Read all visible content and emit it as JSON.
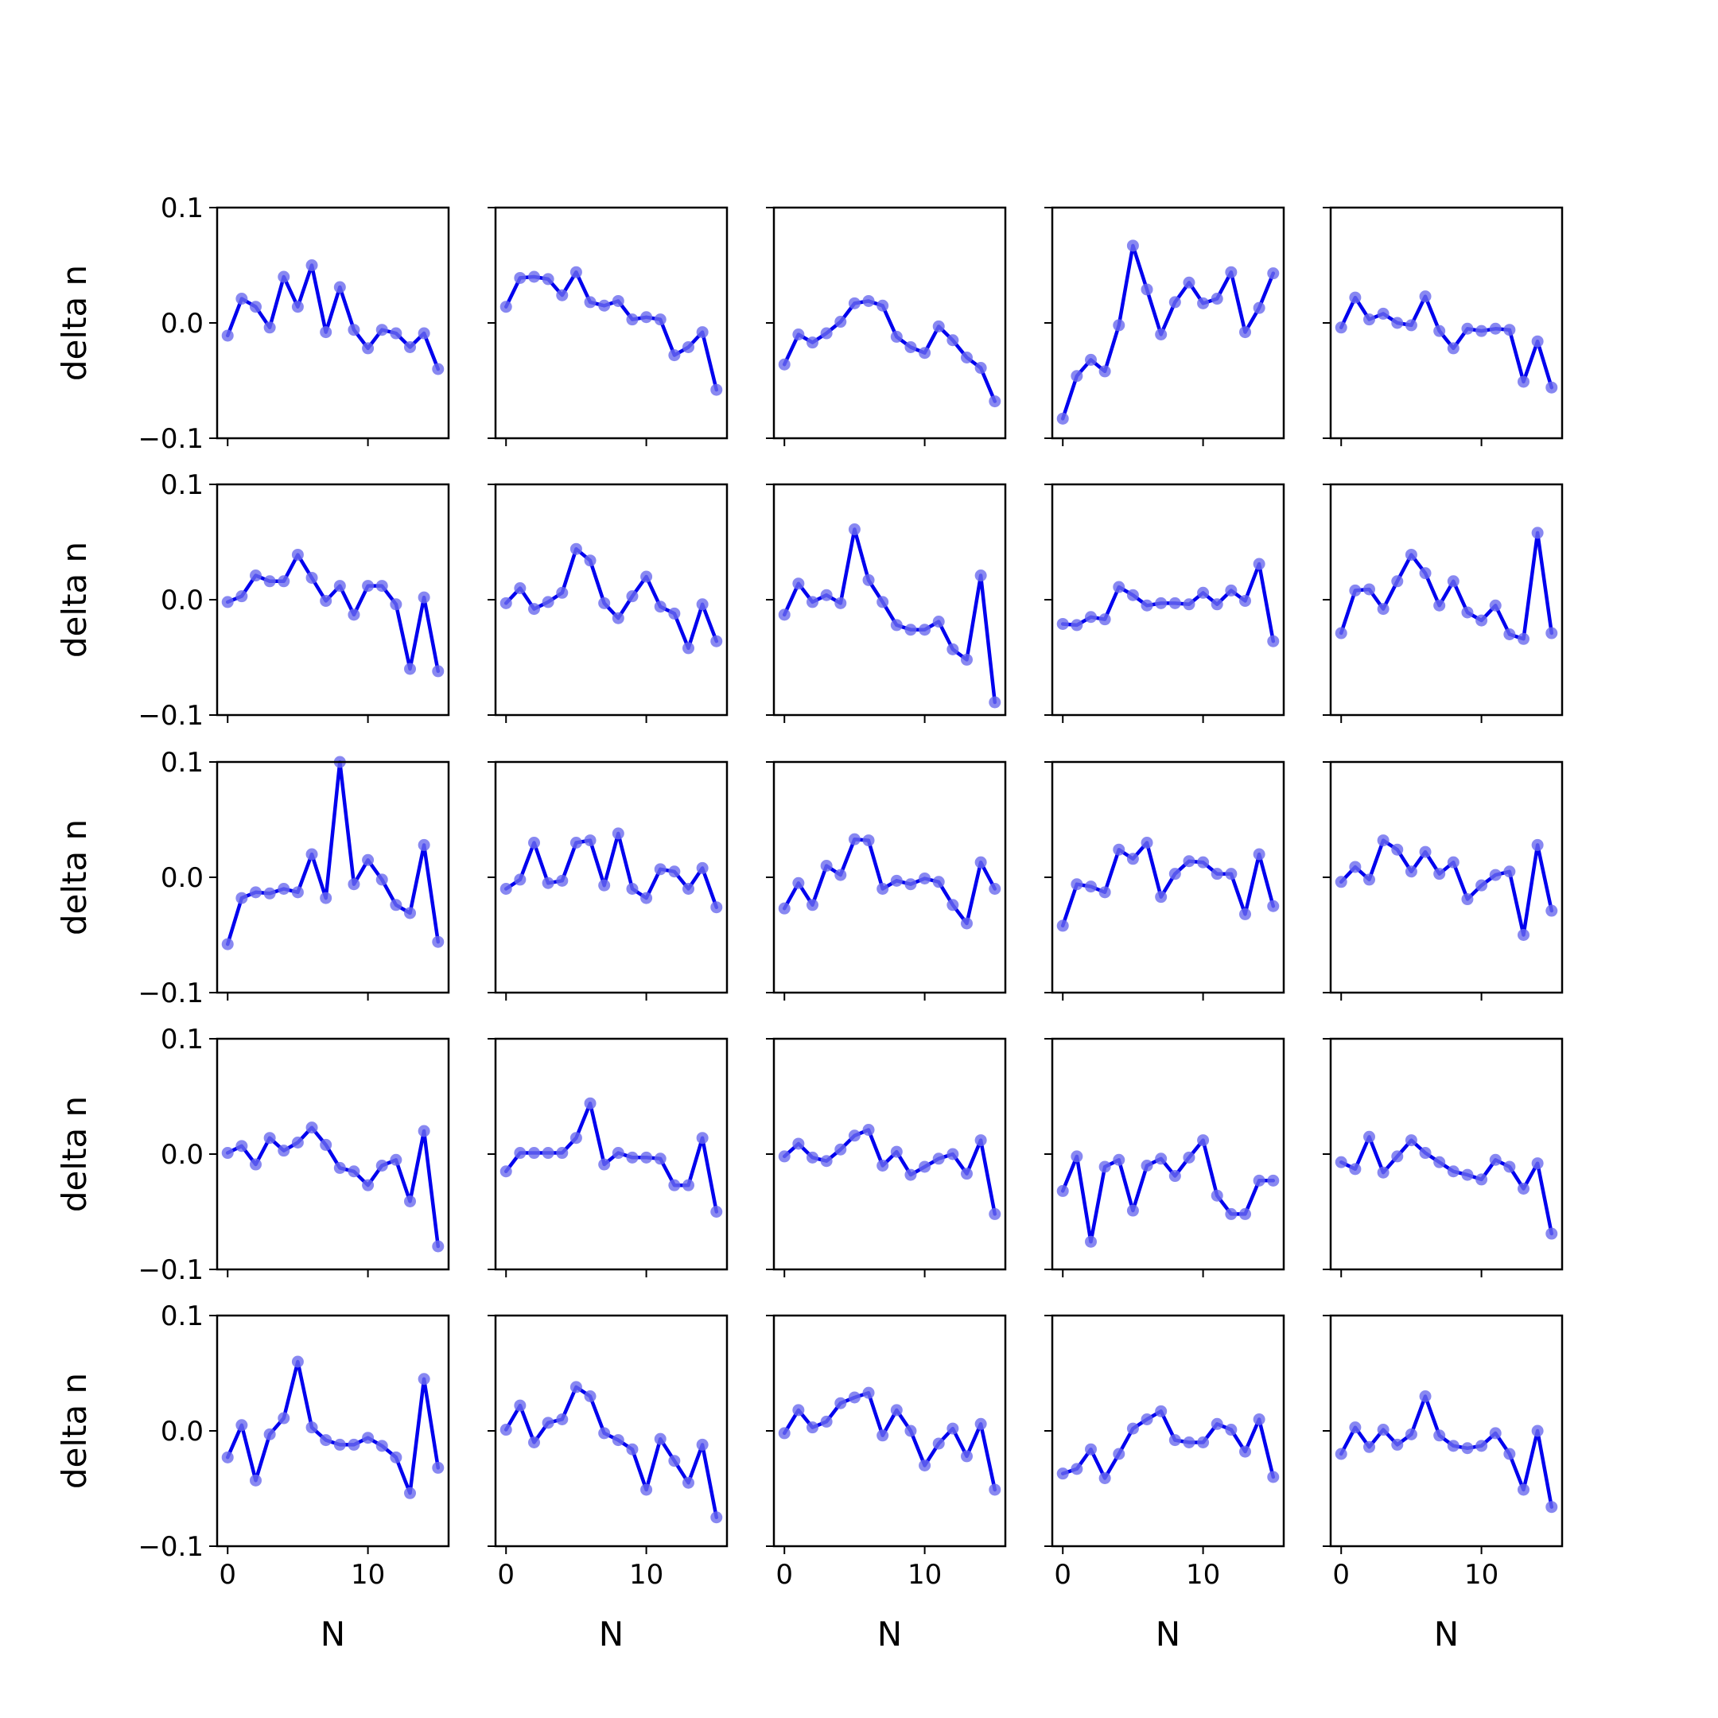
{
  "chart_data": {
    "type": "line",
    "layout": "5x5 grid of small multiples",
    "line_color": "#0000ee",
    "marker_color": "#6a6aee",
    "xlim": [
      -0.75,
      15.75
    ],
    "ylim": [
      -0.1,
      0.1
    ],
    "xticks": [
      0,
      10
    ],
    "xtick_labels": [
      "0",
      "10"
    ],
    "yticks": [
      -0.1,
      0.0,
      0.1
    ],
    "ytick_labels": [
      "−0.1",
      "0.0",
      "0.1"
    ],
    "xlabel": "N",
    "ylabel": "delta n",
    "x": [
      0,
      1,
      2,
      3,
      4,
      5,
      6,
      7,
      8,
      9,
      10,
      11,
      12,
      13,
      14,
      15
    ],
    "panels": [
      {
        "values": [
          -0.011,
          0.021,
          0.014,
          -0.004,
          0.04,
          0.014,
          0.05,
          -0.008,
          0.031,
          -0.006,
          -0.022,
          -0.006,
          -0.009,
          -0.021,
          -0.009,
          -0.04
        ]
      },
      {
        "values": [
          0.014,
          0.039,
          0.04,
          0.038,
          0.024,
          0.044,
          0.018,
          0.015,
          0.019,
          0.003,
          0.005,
          0.003,
          -0.028,
          -0.021,
          -0.008,
          -0.058
        ]
      },
      {
        "values": [
          -0.036,
          -0.01,
          -0.017,
          -0.009,
          0.001,
          0.017,
          0.019,
          0.015,
          -0.012,
          -0.021,
          -0.026,
          -0.003,
          -0.015,
          -0.03,
          -0.039,
          -0.068
        ]
      },
      {
        "values": [
          -0.083,
          -0.046,
          -0.032,
          -0.042,
          -0.002,
          0.067,
          0.029,
          -0.01,
          0.018,
          0.035,
          0.017,
          0.021,
          0.044,
          -0.008,
          0.013,
          0.043
        ]
      },
      {
        "values": [
          -0.004,
          0.022,
          0.003,
          0.008,
          0.0,
          -0.002,
          0.023,
          -0.007,
          -0.022,
          -0.005,
          -0.007,
          -0.005,
          -0.006,
          -0.051,
          -0.016,
          -0.056
        ]
      },
      {
        "values": [
          -0.002,
          0.003,
          0.021,
          0.016,
          0.016,
          0.039,
          0.019,
          -0.001,
          0.012,
          -0.013,
          0.012,
          0.012,
          -0.004,
          -0.06,
          0.002,
          -0.062
        ]
      },
      {
        "values": [
          -0.003,
          0.01,
          -0.008,
          -0.002,
          0.006,
          0.044,
          0.034,
          -0.003,
          -0.016,
          0.003,
          0.02,
          -0.006,
          -0.012,
          -0.042,
          -0.004,
          -0.036
        ]
      },
      {
        "values": [
          -0.013,
          0.014,
          -0.002,
          0.004,
          -0.003,
          0.061,
          0.017,
          -0.002,
          -0.022,
          -0.026,
          -0.026,
          -0.019,
          -0.043,
          -0.052,
          0.021,
          -0.089
        ]
      },
      {
        "values": [
          -0.021,
          -0.022,
          -0.015,
          -0.017,
          0.011,
          0.004,
          -0.005,
          -0.003,
          -0.003,
          -0.004,
          0.006,
          -0.004,
          0.008,
          -0.001,
          0.031,
          -0.036
        ]
      },
      {
        "values": [
          -0.029,
          0.008,
          0.009,
          -0.008,
          0.016,
          0.039,
          0.023,
          -0.005,
          0.016,
          -0.011,
          -0.018,
          -0.005,
          -0.03,
          -0.034,
          0.058,
          -0.029
        ]
      },
      {
        "values": [
          -0.058,
          -0.018,
          -0.013,
          -0.014,
          -0.01,
          -0.013,
          0.02,
          -0.018,
          0.1,
          -0.006,
          0.015,
          -0.002,
          -0.024,
          -0.031,
          0.028,
          -0.056
        ]
      },
      {
        "values": [
          -0.01,
          -0.002,
          0.03,
          -0.005,
          -0.003,
          0.03,
          0.032,
          -0.007,
          0.038,
          -0.01,
          -0.018,
          0.007,
          0.005,
          -0.01,
          0.008,
          -0.026
        ]
      },
      {
        "values": [
          -0.027,
          -0.005,
          -0.024,
          0.01,
          0.002,
          0.033,
          0.032,
          -0.01,
          -0.003,
          -0.006,
          -0.001,
          -0.004,
          -0.024,
          -0.04,
          0.013,
          -0.01
        ]
      },
      {
        "values": [
          -0.042,
          -0.006,
          -0.008,
          -0.013,
          0.024,
          0.016,
          0.03,
          -0.017,
          0.003,
          0.014,
          0.013,
          0.003,
          0.003,
          -0.032,
          0.02,
          -0.025
        ]
      },
      {
        "values": [
          -0.004,
          0.009,
          -0.002,
          0.032,
          0.024,
          0.005,
          0.022,
          0.003,
          0.013,
          -0.019,
          -0.007,
          0.002,
          0.005,
          -0.05,
          0.028,
          -0.029
        ]
      },
      {
        "values": [
          0.001,
          0.007,
          -0.009,
          0.014,
          0.003,
          0.01,
          0.023,
          0.008,
          -0.012,
          -0.015,
          -0.027,
          -0.01,
          -0.005,
          -0.041,
          0.02,
          -0.08
        ]
      },
      {
        "values": [
          -0.015,
          0.001,
          0.001,
          0.001,
          0.001,
          0.014,
          0.044,
          -0.009,
          0.001,
          -0.003,
          -0.003,
          -0.004,
          -0.027,
          -0.027,
          0.014,
          -0.05
        ]
      },
      {
        "values": [
          -0.002,
          0.009,
          -0.003,
          -0.006,
          0.004,
          0.016,
          0.021,
          -0.01,
          0.002,
          -0.018,
          -0.011,
          -0.004,
          0.0,
          -0.017,
          0.012,
          -0.052
        ]
      },
      {
        "values": [
          -0.032,
          -0.002,
          -0.076,
          -0.011,
          -0.005,
          -0.049,
          -0.01,
          -0.004,
          -0.019,
          -0.003,
          0.012,
          -0.036,
          -0.052,
          -0.052,
          -0.023,
          -0.023
        ]
      },
      {
        "values": [
          -0.007,
          -0.013,
          0.015,
          -0.016,
          -0.002,
          0.012,
          0.001,
          -0.007,
          -0.015,
          -0.018,
          -0.022,
          -0.005,
          -0.011,
          -0.03,
          -0.008,
          -0.069
        ]
      },
      {
        "values": [
          -0.023,
          0.005,
          -0.043,
          -0.003,
          0.011,
          0.06,
          0.003,
          -0.008,
          -0.012,
          -0.012,
          -0.006,
          -0.013,
          -0.023,
          -0.054,
          0.045,
          -0.032
        ]
      },
      {
        "values": [
          0.001,
          0.022,
          -0.01,
          0.007,
          0.01,
          0.038,
          0.03,
          -0.002,
          -0.008,
          -0.016,
          -0.051,
          -0.007,
          -0.026,
          -0.045,
          -0.012,
          -0.075
        ]
      },
      {
        "values": [
          -0.002,
          0.018,
          0.003,
          0.008,
          0.024,
          0.029,
          0.033,
          -0.004,
          0.018,
          0.0,
          -0.03,
          -0.011,
          0.002,
          -0.022,
          0.006,
          -0.051
        ]
      },
      {
        "values": [
          -0.037,
          -0.033,
          -0.016,
          -0.041,
          -0.02,
          0.002,
          0.01,
          0.017,
          -0.008,
          -0.01,
          -0.01,
          0.006,
          0.001,
          -0.018,
          0.01,
          -0.04
        ]
      },
      {
        "values": [
          -0.02,
          0.003,
          -0.014,
          0.001,
          -0.012,
          -0.003,
          0.03,
          -0.004,
          -0.013,
          -0.015,
          -0.013,
          -0.002,
          -0.02,
          -0.051,
          0.0,
          -0.066
        ]
      }
    ]
  }
}
